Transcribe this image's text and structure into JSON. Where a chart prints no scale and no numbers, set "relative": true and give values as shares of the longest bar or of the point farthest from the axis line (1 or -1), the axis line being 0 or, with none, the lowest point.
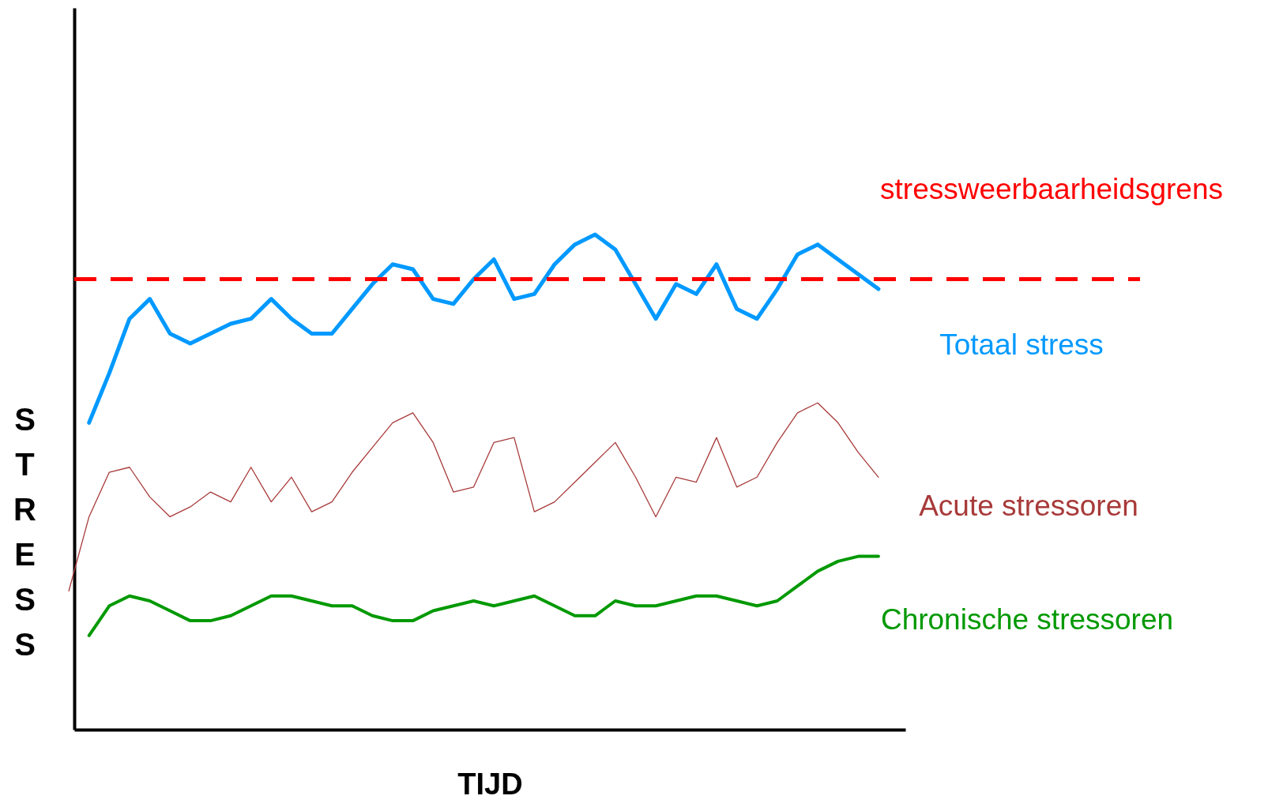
{
  "chart_data": {
    "type": "line",
    "relative": true,
    "xlabel": "TIJD",
    "ylabel": "STRESS",
    "legend": false,
    "tick_labels": false,
    "line_style": "solid",
    "marker": "none",
    "categories": [
      null,
      null,
      null,
      null,
      null,
      null,
      null,
      null,
      null,
      null,
      null,
      null,
      null,
      null,
      null,
      null,
      null,
      null,
      null,
      null,
      null,
      null,
      null,
      null,
      null,
      null,
      null,
      null,
      null,
      null,
      null,
      null,
      null,
      null,
      null,
      null,
      null,
      null,
      null,
      null,
      null,
      null
    ],
    "series": [
      {
        "name": "Totaal stress",
        "color": "#0099ff",
        "values": [
          null,
          0.62,
          0.72,
          0.83,
          0.87,
          0.8,
          0.78,
          0.8,
          0.82,
          0.83,
          0.87,
          0.83,
          0.8,
          0.8,
          0.85,
          0.9,
          0.94,
          0.93,
          0.87,
          0.86,
          0.91,
          0.95,
          0.87,
          0.88,
          0.94,
          0.98,
          1.0,
          0.97,
          0.9,
          0.83,
          0.9,
          0.88,
          0.94,
          0.85,
          0.83,
          0.89,
          0.96,
          0.98,
          0.95,
          0.92,
          0.89,
          null
        ]
      },
      {
        "name": "Acute stressoren",
        "color": "#a83a3a",
        "values": [
          0.28,
          0.43,
          0.52,
          0.53,
          0.47,
          0.43,
          0.45,
          0.48,
          0.46,
          0.53,
          0.46,
          0.51,
          0.44,
          0.46,
          0.52,
          0.57,
          0.62,
          0.64,
          0.58,
          0.48,
          0.49,
          0.58,
          0.59,
          0.44,
          0.46,
          0.5,
          0.54,
          0.58,
          0.51,
          0.43,
          0.51,
          0.5,
          0.59,
          0.49,
          0.51,
          0.58,
          0.64,
          0.66,
          0.62,
          0.56,
          0.51,
          null
        ]
      },
      {
        "name": "Chronische stressoren",
        "color": "#009900",
        "values": [
          null,
          0.19,
          0.25,
          0.27,
          0.26,
          0.24,
          0.22,
          0.22,
          0.23,
          0.25,
          0.27,
          0.27,
          0.26,
          0.25,
          0.25,
          0.23,
          0.22,
          0.22,
          0.24,
          0.25,
          0.26,
          0.25,
          0.26,
          0.27,
          0.25,
          0.23,
          0.23,
          0.26,
          0.25,
          0.25,
          0.26,
          0.27,
          0.27,
          0.26,
          0.25,
          0.26,
          0.29,
          0.32,
          0.34,
          0.35,
          0.35,
          null
        ]
      }
    ],
    "ref_lines": [
      {
        "axis": "y",
        "value": 0.91,
        "label": "stressweerbaarheidsgrens",
        "color": "#ff0000",
        "line_style": "dashed"
      }
    ]
  }
}
